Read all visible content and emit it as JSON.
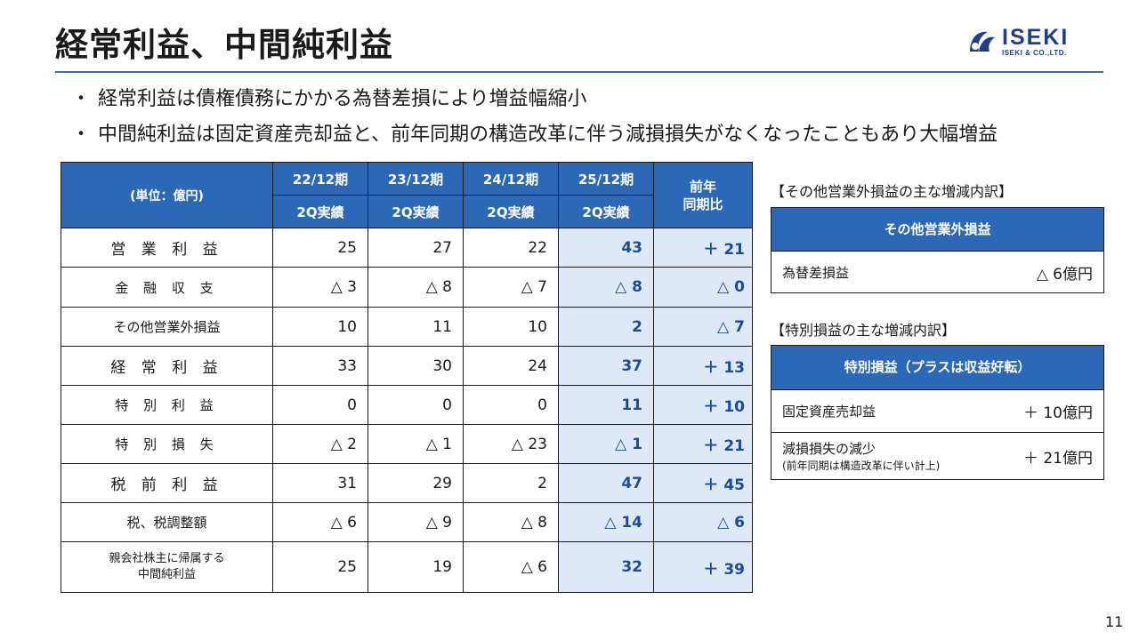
{
  "title": "経常利益、中間純利益",
  "logo": {
    "word": "ISEKI",
    "sub": "ISEKI & CO.,LTD."
  },
  "bullets": [
    "経常利益は債権債務にかかる為替差損により増益幅縮小",
    "中間純利益は固定資産売却益と、前年同期の構造改革に伴う減損損失がなくなったこともあり大幅増益"
  ],
  "bullet_mark": "・",
  "table": {
    "unit_label": "(単位：億円)",
    "periods": [
      "22/12期",
      "23/12期",
      "24/12期",
      "25/12期"
    ],
    "period_sub": [
      "2Q実績",
      "2Q実績",
      "2Q実績",
      "2Q実績"
    ],
    "ratio_label": "前年 同期比",
    "ratio_line1": "前年",
    "ratio_line2": "同期比",
    "rows": [
      {
        "label": "営 業 利 益",
        "v1": "25",
        "v2": "27",
        "v3": "22",
        "v4": "43",
        "ratio": "＋ 21"
      },
      {
        "label": "金 融 収 支",
        "v1": "△ 3",
        "v2": "△ 8",
        "v3": "△ 7",
        "v4": "△ 8",
        "ratio": "△ 0"
      },
      {
        "label": "その他営業外損益",
        "v1": "10",
        "v2": "11",
        "v3": "10",
        "v4": "2",
        "ratio": "△ 7"
      },
      {
        "label": "経 常 利 益",
        "v1": "33",
        "v2": "30",
        "v3": "24",
        "v4": "37",
        "ratio": "＋ 13"
      },
      {
        "label": "特 別 利 益",
        "v1": "0",
        "v2": "0",
        "v3": "0",
        "v4": "11",
        "ratio": "＋ 10"
      },
      {
        "label": "特 別 損 失",
        "v1": "△ 2",
        "v2": "△ 1",
        "v3": "△ 23",
        "v4": "△ 1",
        "ratio": "＋ 21"
      },
      {
        "label": "税 前 利 益",
        "v1": "31",
        "v2": "29",
        "v3": "2",
        "v4": "47",
        "ratio": "＋ 45"
      },
      {
        "label": "税、税調整額",
        "v1": "△ 6",
        "v2": "△ 9",
        "v3": "△ 8",
        "v4": "△ 14",
        "ratio": "△ 6"
      },
      {
        "label_line1": "親会社株主に帰属する",
        "label_line2": "中間純利益",
        "v1": "25",
        "v2": "19",
        "v3": "△ 6",
        "v4": "32",
        "ratio": "＋ 39"
      }
    ]
  },
  "side1": {
    "heading": "【その他営業外損益の主な増減内訳】",
    "box_title": "その他営業外損益",
    "rows": [
      {
        "label": "為替差損益",
        "value": "△ 6億円"
      }
    ]
  },
  "side2": {
    "heading": "【特別損益の主な増減内訳】",
    "box_title": "特別損益（プラスは収益好転）",
    "rows": [
      {
        "label": "固定資産売却益",
        "value": "＋ 10億円"
      },
      {
        "label": "減損損失の減少",
        "sub": "(前年同期は構造改革に伴い計上)",
        "value": "＋ 21億円"
      }
    ]
  },
  "page_number": "11",
  "colors": {
    "header_blue": "#2b68b6",
    "highlight_bg": "#dde9f7",
    "highlight_text": "#1d4c95",
    "rule": "#2f6fb3"
  }
}
